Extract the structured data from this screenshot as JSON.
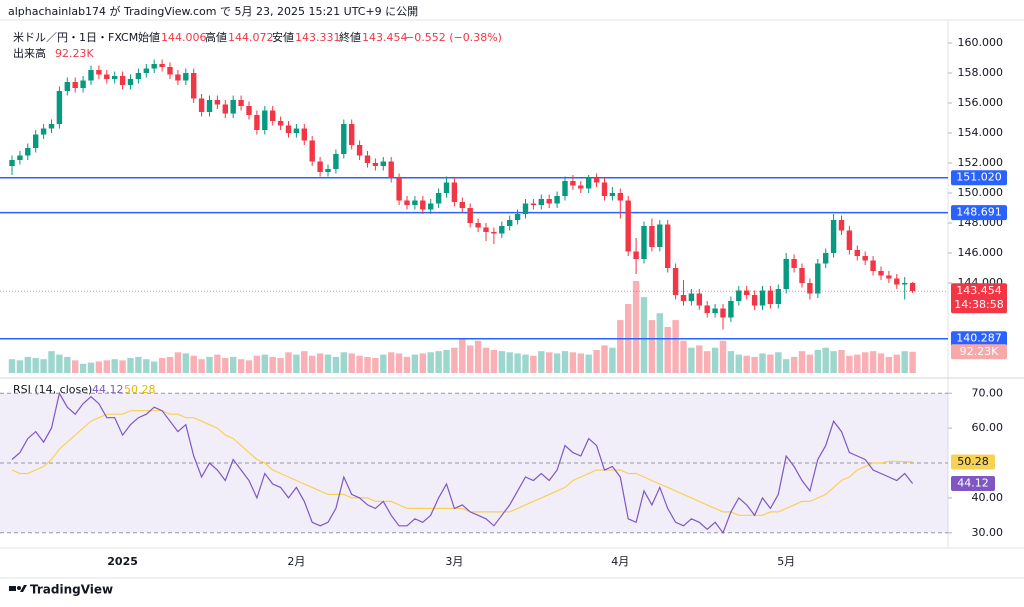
{
  "header": {
    "published": "alphachainlab174 が TradingView.com で 5月 23, 2025 15:21 UTC+9 に公開"
  },
  "chart_data": {
    "type": "candlestick",
    "symbol": "米ドル／円・1日・FXCM",
    "ohlc_labels": [
      "始値",
      "高値",
      "安値",
      "終値"
    ],
    "change": "−0.552 (−0.38%)",
    "up_color": "#089981",
    "down_color": "#f23645",
    "categories": [
      null,
      null,
      null,
      null,
      null,
      null,
      null,
      null,
      null,
      null,
      null,
      null,
      null,
      null,
      "2025",
      null,
      null,
      null,
      null,
      null,
      null,
      null,
      null,
      null,
      null,
      null,
      null,
      null,
      null,
      null,
      null,
      null,
      null,
      null,
      null,
      null,
      "2月",
      null,
      null,
      null,
      null,
      null,
      null,
      null,
      null,
      null,
      null,
      null,
      null,
      null,
      null,
      null,
      null,
      null,
      null,
      null,
      "3月",
      null,
      null,
      null,
      null,
      null,
      null,
      null,
      null,
      null,
      null,
      null,
      null,
      null,
      null,
      null,
      null,
      null,
      null,
      null,
      null,
      "4月",
      null,
      null,
      null,
      null,
      null,
      null,
      null,
      null,
      null,
      null,
      null,
      null,
      null,
      null,
      null,
      null,
      null,
      null,
      null,
      null,
      "5月",
      null,
      null,
      null,
      null,
      null,
      null,
      null,
      null,
      null,
      null,
      null,
      null,
      null,
      null,
      null,
      null
    ],
    "candles": [
      [
        151.8,
        152.5,
        151.2,
        152.2
      ],
      [
        152.2,
        152.8,
        151.9,
        152.5
      ],
      [
        152.5,
        153.3,
        152.2,
        153.0
      ],
      [
        153.0,
        154.2,
        152.7,
        153.9
      ],
      [
        153.9,
        154.6,
        153.6,
        154.3
      ],
      [
        154.3,
        154.9,
        154.0,
        154.6
      ],
      [
        154.6,
        157.1,
        154.3,
        156.8
      ],
      [
        156.8,
        157.7,
        156.5,
        157.4
      ],
      [
        157.4,
        157.7,
        156.7,
        157.0
      ],
      [
        157.0,
        157.8,
        156.7,
        157.5
      ],
      [
        157.5,
        158.5,
        157.2,
        158.2
      ],
      [
        158.2,
        158.5,
        157.6,
        157.9
      ],
      [
        157.9,
        158.2,
        157.3,
        157.6
      ],
      [
        157.6,
        158.1,
        157.3,
        157.8
      ],
      [
        157.8,
        158.1,
        156.9,
        157.2
      ],
      [
        157.2,
        157.9,
        156.9,
        157.6
      ],
      [
        157.6,
        158.3,
        157.3,
        158.0
      ],
      [
        158.0,
        158.6,
        157.7,
        158.3
      ],
      [
        158.3,
        158.9,
        158.0,
        158.6
      ],
      [
        158.6,
        158.9,
        158.1,
        158.4
      ],
      [
        158.4,
        158.7,
        157.6,
        157.9
      ],
      [
        157.9,
        158.2,
        157.2,
        157.5
      ],
      [
        157.5,
        158.3,
        157.2,
        158.0
      ],
      [
        158.0,
        158.3,
        156.0,
        156.3
      ],
      [
        156.3,
        156.6,
        155.1,
        155.4
      ],
      [
        155.4,
        156.5,
        155.1,
        156.2
      ],
      [
        156.2,
        156.5,
        155.6,
        155.9
      ],
      [
        155.9,
        156.2,
        155.0,
        155.3
      ],
      [
        155.3,
        156.5,
        155.0,
        156.2
      ],
      [
        156.2,
        156.5,
        155.5,
        155.8
      ],
      [
        155.8,
        156.1,
        154.9,
        155.2
      ],
      [
        155.2,
        155.5,
        153.9,
        154.2
      ],
      [
        154.2,
        155.8,
        153.9,
        155.5
      ],
      [
        155.5,
        155.8,
        154.5,
        154.8
      ],
      [
        154.8,
        155.1,
        154.2,
        154.5
      ],
      [
        154.5,
        154.8,
        153.7,
        154.0
      ],
      [
        154.0,
        154.6,
        153.7,
        154.3
      ],
      [
        154.3,
        154.6,
        153.2,
        153.5
      ],
      [
        153.5,
        153.8,
        151.8,
        152.1
      ],
      [
        152.1,
        152.4,
        151.1,
        151.4
      ],
      [
        151.4,
        151.9,
        151.1,
        151.6
      ],
      [
        151.6,
        152.9,
        151.3,
        152.6
      ],
      [
        152.6,
        154.9,
        152.3,
        154.6
      ],
      [
        154.6,
        154.9,
        152.9,
        153.2
      ],
      [
        153.2,
        153.5,
        152.2,
        152.5
      ],
      [
        152.5,
        152.8,
        151.7,
        152.0
      ],
      [
        152.0,
        152.3,
        151.5,
        151.8
      ],
      [
        151.8,
        152.4,
        151.5,
        152.1
      ],
      [
        152.1,
        152.4,
        150.7,
        151.0
      ],
      [
        151.0,
        151.3,
        149.2,
        149.5
      ],
      [
        149.5,
        149.8,
        148.9,
        149.2
      ],
      [
        149.2,
        149.8,
        148.9,
        149.5
      ],
      [
        149.5,
        149.8,
        148.6,
        148.9
      ],
      [
        148.9,
        149.6,
        148.6,
        149.3
      ],
      [
        149.3,
        150.3,
        149.0,
        150.0
      ],
      [
        150.0,
        151.1,
        149.7,
        150.7
      ],
      [
        150.7,
        151.0,
        149.1,
        149.4
      ],
      [
        149.4,
        149.7,
        148.7,
        149.0
      ],
      [
        149.0,
        149.3,
        147.7,
        148.0
      ],
      [
        148.0,
        148.3,
        147.4,
        147.7
      ],
      [
        147.7,
        148.0,
        146.8,
        147.4
      ],
      [
        147.4,
        147.7,
        146.6,
        147.3
      ],
      [
        147.3,
        148.1,
        147.0,
        147.8
      ],
      [
        147.8,
        148.5,
        147.5,
        148.2
      ],
      [
        148.2,
        148.9,
        147.9,
        148.6
      ],
      [
        148.6,
        149.6,
        148.3,
        149.3
      ],
      [
        149.3,
        149.6,
        148.9,
        149.2
      ],
      [
        149.2,
        149.9,
        148.9,
        149.6
      ],
      [
        149.6,
        149.9,
        149.0,
        149.3
      ],
      [
        149.3,
        150.1,
        149.0,
        149.8
      ],
      [
        149.8,
        151.1,
        149.5,
        150.8
      ],
      [
        150.8,
        151.2,
        150.2,
        150.5
      ],
      [
        150.5,
        150.8,
        150.0,
        150.3
      ],
      [
        150.3,
        151.2,
        150.0,
        151.0
      ],
      [
        151.0,
        151.3,
        150.4,
        150.7
      ],
      [
        150.7,
        151.0,
        149.5,
        149.8
      ],
      [
        149.8,
        150.4,
        149.5,
        150.0
      ],
      [
        150.0,
        150.3,
        148.3,
        149.5
      ],
      [
        149.5,
        149.8,
        145.8,
        146.1
      ],
      [
        146.1,
        147.0,
        144.6,
        145.6
      ],
      [
        145.6,
        148.1,
        145.3,
        147.8
      ],
      [
        147.8,
        148.3,
        146.1,
        146.4
      ],
      [
        146.4,
        148.2,
        146.1,
        147.9
      ],
      [
        147.9,
        148.2,
        144.7,
        145.0
      ],
      [
        145.0,
        145.3,
        142.9,
        143.2
      ],
      [
        143.2,
        144.2,
        142.5,
        142.8
      ],
      [
        142.8,
        143.6,
        142.5,
        143.3
      ],
      [
        143.3,
        143.6,
        142.2,
        142.5
      ],
      [
        142.5,
        142.8,
        141.7,
        142.0
      ],
      [
        142.0,
        142.6,
        141.7,
        142.3
      ],
      [
        142.3,
        142.6,
        140.9,
        141.7
      ],
      [
        141.7,
        143.1,
        141.4,
        142.8
      ],
      [
        142.8,
        143.8,
        142.5,
        143.5
      ],
      [
        143.5,
        143.8,
        142.9,
        143.2
      ],
      [
        143.2,
        143.5,
        142.2,
        142.5
      ],
      [
        142.5,
        143.8,
        142.2,
        143.5
      ],
      [
        143.5,
        143.8,
        142.3,
        142.6
      ],
      [
        142.6,
        143.9,
        142.3,
        143.6
      ],
      [
        143.6,
        146.0,
        143.3,
        145.6
      ],
      [
        145.6,
        145.9,
        144.7,
        145.0
      ],
      [
        145.0,
        145.3,
        143.7,
        144.0
      ],
      [
        144.0,
        144.3,
        142.9,
        143.3
      ],
      [
        143.3,
        145.6,
        143.0,
        145.3
      ],
      [
        145.3,
        146.3,
        145.0,
        146.0
      ],
      [
        146.0,
        148.6,
        145.7,
        148.2
      ],
      [
        148.2,
        148.5,
        147.2,
        147.5
      ],
      [
        147.5,
        147.8,
        145.9,
        146.2
      ],
      [
        146.2,
        146.5,
        145.5,
        145.8
      ],
      [
        145.8,
        146.1,
        145.2,
        145.5
      ],
      [
        145.5,
        145.8,
        144.5,
        144.8
      ],
      [
        144.8,
        145.1,
        144.2,
        144.5
      ],
      [
        144.5,
        144.8,
        144.0,
        144.3
      ],
      [
        144.3,
        144.6,
        143.6,
        143.9
      ],
      [
        143.9,
        144.4,
        142.9,
        144.0
      ],
      [
        144.006,
        144.072,
        143.331,
        143.454
      ]
    ],
    "ylim": [
      138,
      161
    ],
    "yticks": [
      {
        "value": 144,
        "label": "144.000"
      },
      {
        "value": 146,
        "label": "146.000"
      },
      {
        "value": 148,
        "label": "148.000"
      },
      {
        "value": 150,
        "label": "150.000"
      },
      {
        "value": 152,
        "label": "152.000"
      },
      {
        "value": 154,
        "label": "154.000"
      },
      {
        "value": 156,
        "label": "156.000"
      },
      {
        "value": 158,
        "label": "158.000"
      },
      {
        "value": 160,
        "label": "160.000"
      }
    ],
    "hlines": [
      {
        "value": 151.02,
        "label": "151.020"
      },
      {
        "value": 148.691,
        "label": "148.691"
      },
      {
        "value": 140.287,
        "label": "140.287"
      }
    ],
    "hline_color": "#2962ff",
    "countdown": "14:38:58",
    "volume": {
      "name": "出来高",
      "label": "92.23K",
      "ylim": [
        0,
        1500000
      ],
      "values": [
        60000,
        55000,
        70000,
        65000,
        60000,
        95000,
        80000,
        70000,
        55000,
        40000,
        45000,
        50000,
        55000,
        60000,
        55000,
        65000,
        70000,
        60000,
        50000,
        65000,
        70000,
        90000,
        85000,
        75000,
        60000,
        70000,
        80000,
        65000,
        70000,
        60000,
        55000,
        75000,
        80000,
        70000,
        65000,
        90000,
        80000,
        95000,
        75000,
        85000,
        80000,
        70000,
        90000,
        85000,
        75000,
        70000,
        65000,
        80000,
        90000,
        85000,
        70000,
        80000,
        85000,
        90000,
        95000,
        100000,
        110000,
        150000,
        120000,
        140000,
        110000,
        100000,
        95000,
        90000,
        85000,
        80000,
        75000,
        95000,
        90000,
        85000,
        95000,
        90000,
        85000,
        80000,
        100000,
        120000,
        110000,
        230000,
        300000,
        400000,
        330000,
        230000,
        260000,
        200000,
        230000,
        140000,
        110000,
        120000,
        95000,
        110000,
        140000,
        95000,
        80000,
        75000,
        70000,
        85000,
        80000,
        90000,
        60000,
        70000,
        95000,
        80000,
        100000,
        110000,
        95000,
        100000,
        75000,
        80000,
        90000,
        95000,
        85000,
        70000,
        80000,
        95000,
        92230
      ]
    },
    "rsi": {
      "name": "RSI (14, close)",
      "color": "#7e57c2",
      "ma_color": "#f7d154",
      "ylim": [
        26.5,
        73.8
      ],
      "yticks": [
        {
          "value": 30,
          "label": "30.00"
        },
        {
          "value": 40,
          "label": "40.00"
        },
        {
          "value": 60,
          "label": "60.00"
        },
        {
          "value": 70,
          "label": "70.00"
        }
      ],
      "bands": [
        70,
        50,
        30
      ],
      "values": [
        51,
        53,
        57,
        59,
        56,
        60,
        70,
        66,
        64,
        67,
        69,
        67,
        63,
        63,
        58,
        61,
        63,
        64,
        66,
        65,
        62,
        59,
        61,
        52,
        46,
        50,
        48,
        45,
        51,
        48,
        45,
        40,
        47,
        44,
        43,
        40,
        43,
        39,
        33,
        32,
        33,
        37,
        46,
        41,
        40,
        38,
        37,
        39,
        35,
        32,
        32,
        34,
        33,
        35,
        40,
        44,
        37,
        38,
        36,
        35,
        34,
        32,
        35,
        38,
        42,
        46,
        45,
        47,
        45,
        48,
        55,
        53,
        52,
        57,
        55,
        48,
        49,
        46,
        34,
        33,
        42,
        38,
        43,
        37,
        33,
        32,
        34,
        33,
        31,
        33,
        30,
        36,
        40,
        38,
        35,
        40,
        37,
        41,
        52,
        49,
        45,
        42,
        51,
        55,
        62,
        59,
        53,
        52,
        51,
        48,
        47,
        46,
        45,
        47,
        44.12
      ],
      "ma": [
        48,
        47,
        47,
        48,
        49,
        51,
        54,
        56,
        58,
        60,
        62,
        63,
        64,
        64,
        64,
        65,
        65,
        65,
        65,
        65,
        64,
        64,
        63,
        63,
        62,
        61,
        60,
        58,
        57,
        55,
        53,
        51,
        50,
        48,
        47,
        46,
        45,
        44,
        43,
        42,
        41,
        41,
        41,
        40,
        40,
        40,
        39,
        39,
        39,
        38,
        37,
        37,
        37,
        37,
        37,
        37,
        37,
        37,
        36,
        36,
        36,
        36,
        36,
        36,
        37,
        38,
        39,
        40,
        41,
        42,
        43,
        45,
        46,
        47,
        48,
        48,
        48,
        48,
        47,
        47,
        46,
        45,
        44,
        43,
        42,
        41,
        40,
        39,
        38,
        37,
        36,
        36,
        35,
        35,
        35,
        35,
        36,
        36,
        37,
        38,
        39,
        39,
        40,
        41,
        43,
        45,
        46,
        48,
        49,
        50,
        50,
        50.5,
        50.5,
        50.4,
        50.28
      ]
    }
  },
  "footer": "TradingView"
}
